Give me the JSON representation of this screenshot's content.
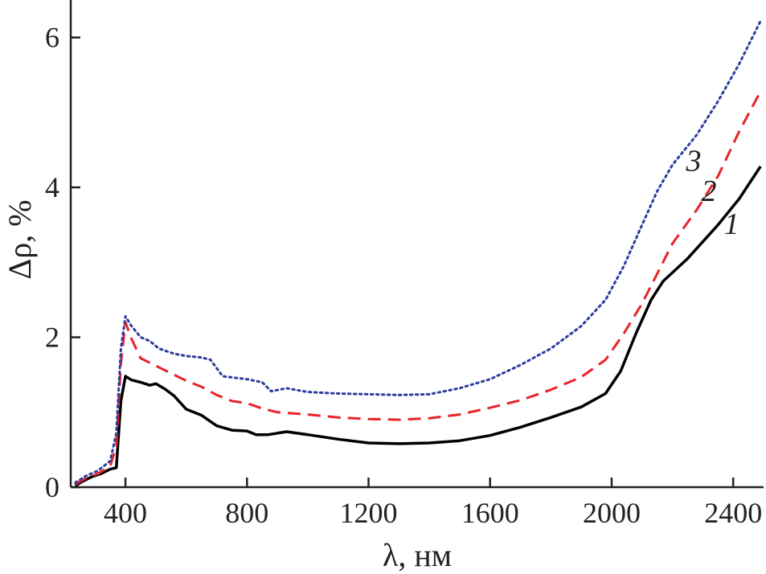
{
  "chart_data": {
    "type": "line",
    "title": "",
    "xlabel": "λ, нм",
    "ylabel": "Δρ, %",
    "xlim": [
      220,
      2500
    ],
    "ylim": [
      0,
      6.5
    ],
    "xticks": [
      400,
      800,
      1200,
      1600,
      2000,
      2400
    ],
    "xtick_labels": [
      "400",
      "800",
      "1200",
      "1600",
      "2000",
      "2400"
    ],
    "yticks": [
      0,
      2,
      4,
      6
    ],
    "ytick_labels": [
      "0",
      "2",
      "4",
      "6"
    ],
    "grid": false,
    "series": [
      {
        "name": "1",
        "color": "#000000",
        "style": "solid",
        "points": [
          [
            235,
            0.02
          ],
          [
            260,
            0.08
          ],
          [
            290,
            0.14
          ],
          [
            320,
            0.18
          ],
          [
            350,
            0.24
          ],
          [
            370,
            0.26
          ],
          [
            385,
            1.15
          ],
          [
            400,
            1.48
          ],
          [
            420,
            1.43
          ],
          [
            450,
            1.4
          ],
          [
            480,
            1.36
          ],
          [
            500,
            1.38
          ],
          [
            530,
            1.31
          ],
          [
            560,
            1.22
          ],
          [
            600,
            1.04
          ],
          [
            650,
            0.96
          ],
          [
            700,
            0.82
          ],
          [
            750,
            0.76
          ],
          [
            800,
            0.75
          ],
          [
            830,
            0.7
          ],
          [
            870,
            0.7
          ],
          [
            930,
            0.74
          ],
          [
            1000,
            0.7
          ],
          [
            1100,
            0.64
          ],
          [
            1200,
            0.59
          ],
          [
            1300,
            0.58
          ],
          [
            1400,
            0.59
          ],
          [
            1500,
            0.62
          ],
          [
            1600,
            0.69
          ],
          [
            1700,
            0.8
          ],
          [
            1800,
            0.93
          ],
          [
            1900,
            1.07
          ],
          [
            1980,
            1.25
          ],
          [
            2030,
            1.55
          ],
          [
            2080,
            2.05
          ],
          [
            2130,
            2.5
          ],
          [
            2170,
            2.75
          ],
          [
            2250,
            3.05
          ],
          [
            2350,
            3.5
          ],
          [
            2420,
            3.85
          ],
          [
            2490,
            4.28
          ]
        ]
      },
      {
        "name": "2",
        "color": "#e8232a",
        "style": "dashed",
        "points": [
          [
            235,
            0.04
          ],
          [
            270,
            0.12
          ],
          [
            310,
            0.18
          ],
          [
            350,
            0.28
          ],
          [
            370,
            0.55
          ],
          [
            385,
            1.65
          ],
          [
            400,
            2.2
          ],
          [
            420,
            1.98
          ],
          [
            450,
            1.72
          ],
          [
            500,
            1.62
          ],
          [
            550,
            1.52
          ],
          [
            600,
            1.42
          ],
          [
            650,
            1.34
          ],
          [
            700,
            1.23
          ],
          [
            750,
            1.15
          ],
          [
            800,
            1.12
          ],
          [
            850,
            1.05
          ],
          [
            900,
            1.0
          ],
          [
            1000,
            0.97
          ],
          [
            1100,
            0.93
          ],
          [
            1200,
            0.91
          ],
          [
            1300,
            0.9
          ],
          [
            1400,
            0.92
          ],
          [
            1500,
            0.97
          ],
          [
            1600,
            1.06
          ],
          [
            1700,
            1.16
          ],
          [
            1800,
            1.3
          ],
          [
            1900,
            1.47
          ],
          [
            1980,
            1.7
          ],
          [
            2040,
            2.05
          ],
          [
            2100,
            2.45
          ],
          [
            2150,
            2.85
          ],
          [
            2200,
            3.25
          ],
          [
            2280,
            3.7
          ],
          [
            2350,
            4.15
          ],
          [
            2420,
            4.75
          ],
          [
            2490,
            5.28
          ]
        ]
      },
      {
        "name": "3",
        "color": "#2e3d9e",
        "style": "dotted",
        "points": [
          [
            235,
            0.06
          ],
          [
            270,
            0.15
          ],
          [
            310,
            0.22
          ],
          [
            350,
            0.35
          ],
          [
            370,
            0.72
          ],
          [
            385,
            1.85
          ],
          [
            400,
            2.28
          ],
          [
            420,
            2.15
          ],
          [
            450,
            2.0
          ],
          [
            480,
            1.95
          ],
          [
            510,
            1.85
          ],
          [
            560,
            1.78
          ],
          [
            600,
            1.75
          ],
          [
            650,
            1.73
          ],
          [
            680,
            1.7
          ],
          [
            720,
            1.48
          ],
          [
            760,
            1.46
          ],
          [
            800,
            1.44
          ],
          [
            850,
            1.4
          ],
          [
            880,
            1.28
          ],
          [
            930,
            1.32
          ],
          [
            1000,
            1.27
          ],
          [
            1100,
            1.25
          ],
          [
            1200,
            1.24
          ],
          [
            1300,
            1.23
          ],
          [
            1400,
            1.24
          ],
          [
            1500,
            1.32
          ],
          [
            1600,
            1.44
          ],
          [
            1700,
            1.63
          ],
          [
            1800,
            1.85
          ],
          [
            1900,
            2.15
          ],
          [
            1980,
            2.5
          ],
          [
            2040,
            2.95
          ],
          [
            2100,
            3.5
          ],
          [
            2150,
            3.95
          ],
          [
            2200,
            4.3
          ],
          [
            2280,
            4.7
          ],
          [
            2350,
            5.15
          ],
          [
            2420,
            5.65
          ],
          [
            2490,
            6.22
          ]
        ]
      }
    ],
    "annotations": [
      {
        "text": "1",
        "series": "1",
        "at": [
          2395,
          3.38
        ]
      },
      {
        "text": "2",
        "series": "2",
        "at": [
          2320,
          3.82
        ]
      },
      {
        "text": "3",
        "series": "3",
        "at": [
          2270,
          4.22
        ]
      }
    ]
  }
}
